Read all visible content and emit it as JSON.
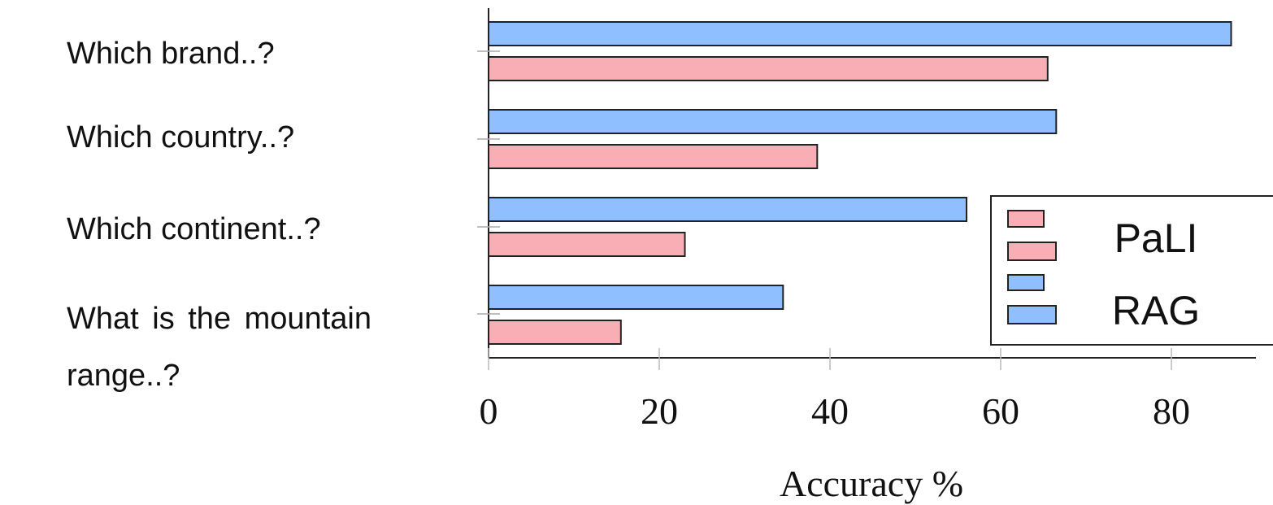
{
  "chart_data": {
    "type": "bar",
    "orientation": "horizontal",
    "categories": [
      [
        "Which brand..?"
      ],
      [
        "Which country..?"
      ],
      [
        "Which continent..?"
      ],
      [
        "What is the mountain",
        "range..?"
      ]
    ],
    "series": [
      {
        "name": "RAG",
        "color": "#8fbfff",
        "values": [
          87,
          66.5,
          56,
          34.5
        ]
      },
      {
        "name": "PaLI",
        "color": "#f9aeb5",
        "values": [
          65.5,
          38.5,
          23,
          15.5
        ]
      }
    ],
    "xlabel": "Accuracy %",
    "xticks": [
      0,
      20,
      40,
      60,
      80
    ],
    "xlim": [
      0,
      90
    ],
    "legend": {
      "position": "right",
      "entries": [
        {
          "label": "PaLI",
          "color": "#f9aeb5"
        },
        {
          "label": "RAG",
          "color": "#8fbfff"
        }
      ]
    },
    "grid": false
  }
}
